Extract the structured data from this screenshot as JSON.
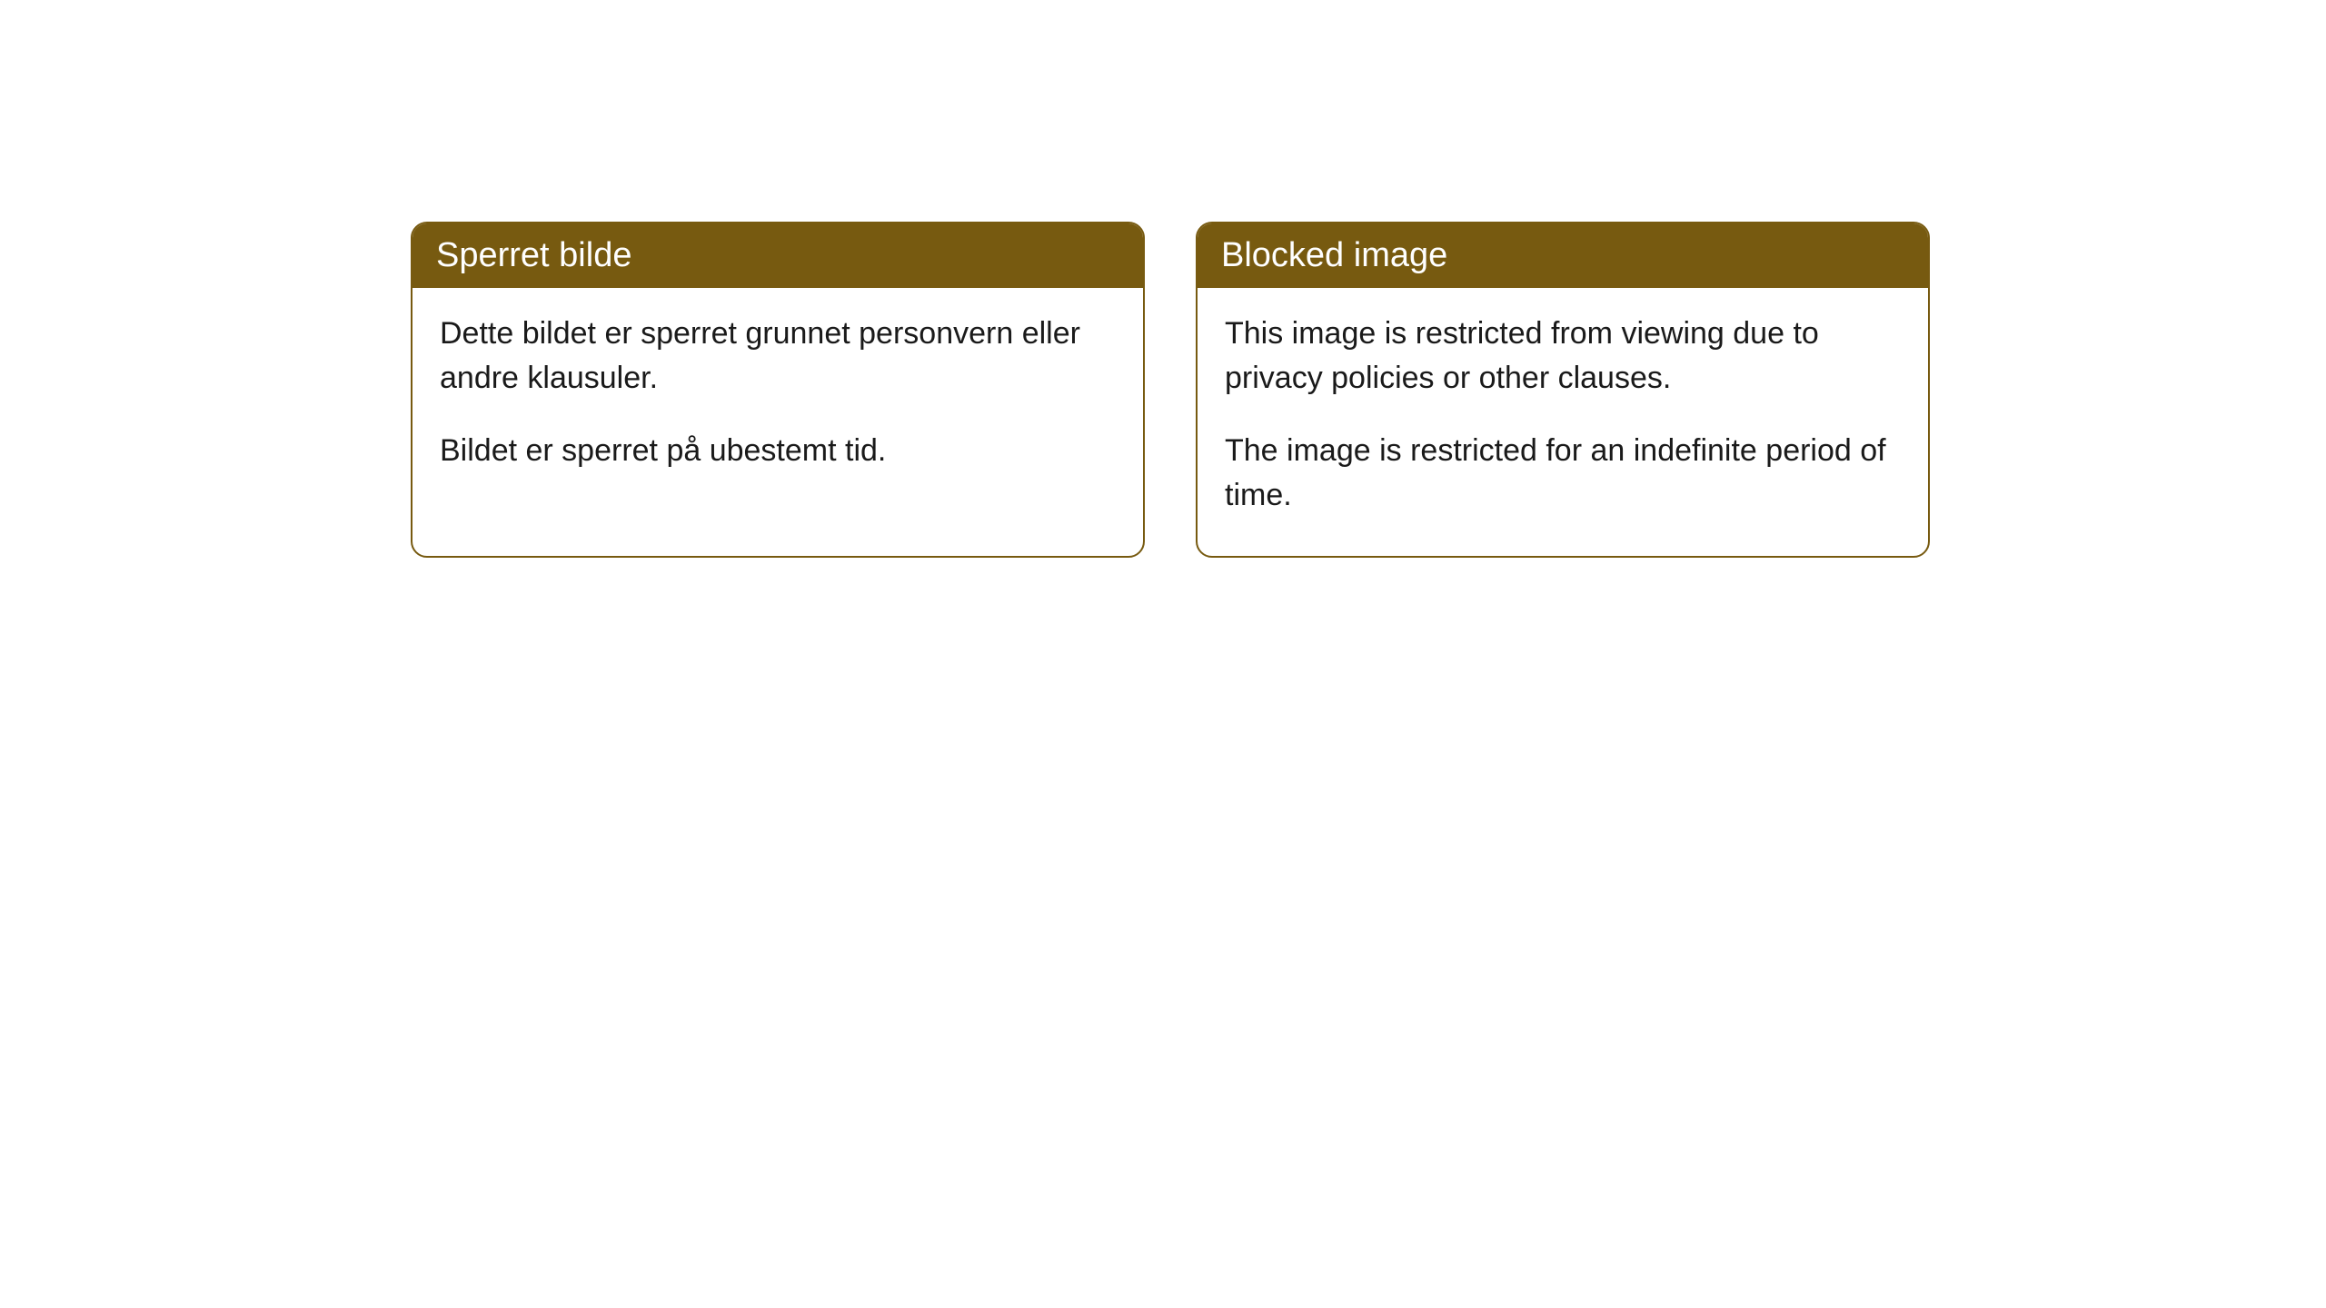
{
  "styling": {
    "header_bg_color": "#775a10",
    "header_text_color": "#ffffff",
    "border_color": "#775a10",
    "body_text_color": "#1a1a1a",
    "card_bg_color": "#ffffff",
    "page_bg_color": "#ffffff",
    "border_radius": 18,
    "header_fontsize": 38,
    "body_fontsize": 34
  },
  "cards": {
    "norwegian": {
      "title": "Sperret bilde",
      "paragraph1": "Dette bildet er sperret grunnet personvern eller andre klausuler.",
      "paragraph2": "Bildet er sperret på ubestemt tid."
    },
    "english": {
      "title": "Blocked image",
      "paragraph1": "This image is restricted from viewing due to privacy policies or other clauses.",
      "paragraph2": "The image is restricted for an indefinite period of time."
    }
  }
}
